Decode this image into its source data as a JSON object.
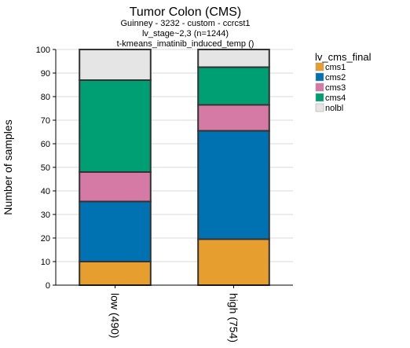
{
  "chart_data": {
    "type": "bar",
    "stacked": true,
    "title": "Tumor Colon (CMS)",
    "subtitle_lines": [
      "Guinney - 3232 - custom - ccrcst1",
      "lv_stage~2,3 (n=1244)",
      "t-kmeans_imatinib_induced_temp ()"
    ],
    "xlabel": "",
    "ylabel": "Number of samples",
    "ylim": [
      0,
      100
    ],
    "yticks": [
      0,
      10,
      20,
      30,
      40,
      50,
      60,
      70,
      80,
      90,
      100
    ],
    "grid": true,
    "categories": [
      "low (490)",
      "high (754)"
    ],
    "legend": {
      "title": "lv_cms_final",
      "position": "right-top"
    },
    "series": [
      {
        "name": "cms1",
        "color": "#E69F2E",
        "values": [
          10,
          19.5
        ]
      },
      {
        "name": "cms2",
        "color": "#0072B2",
        "values": [
          25.5,
          46
        ]
      },
      {
        "name": "cms3",
        "color": "#D47AA5",
        "values": [
          12.5,
          11
        ]
      },
      {
        "name": "cms4",
        "color": "#009E73",
        "values": [
          39,
          16
        ]
      },
      {
        "name": "nolbl",
        "color": "#E5E5E5",
        "values": [
          13,
          7.5
        ]
      }
    ]
  }
}
